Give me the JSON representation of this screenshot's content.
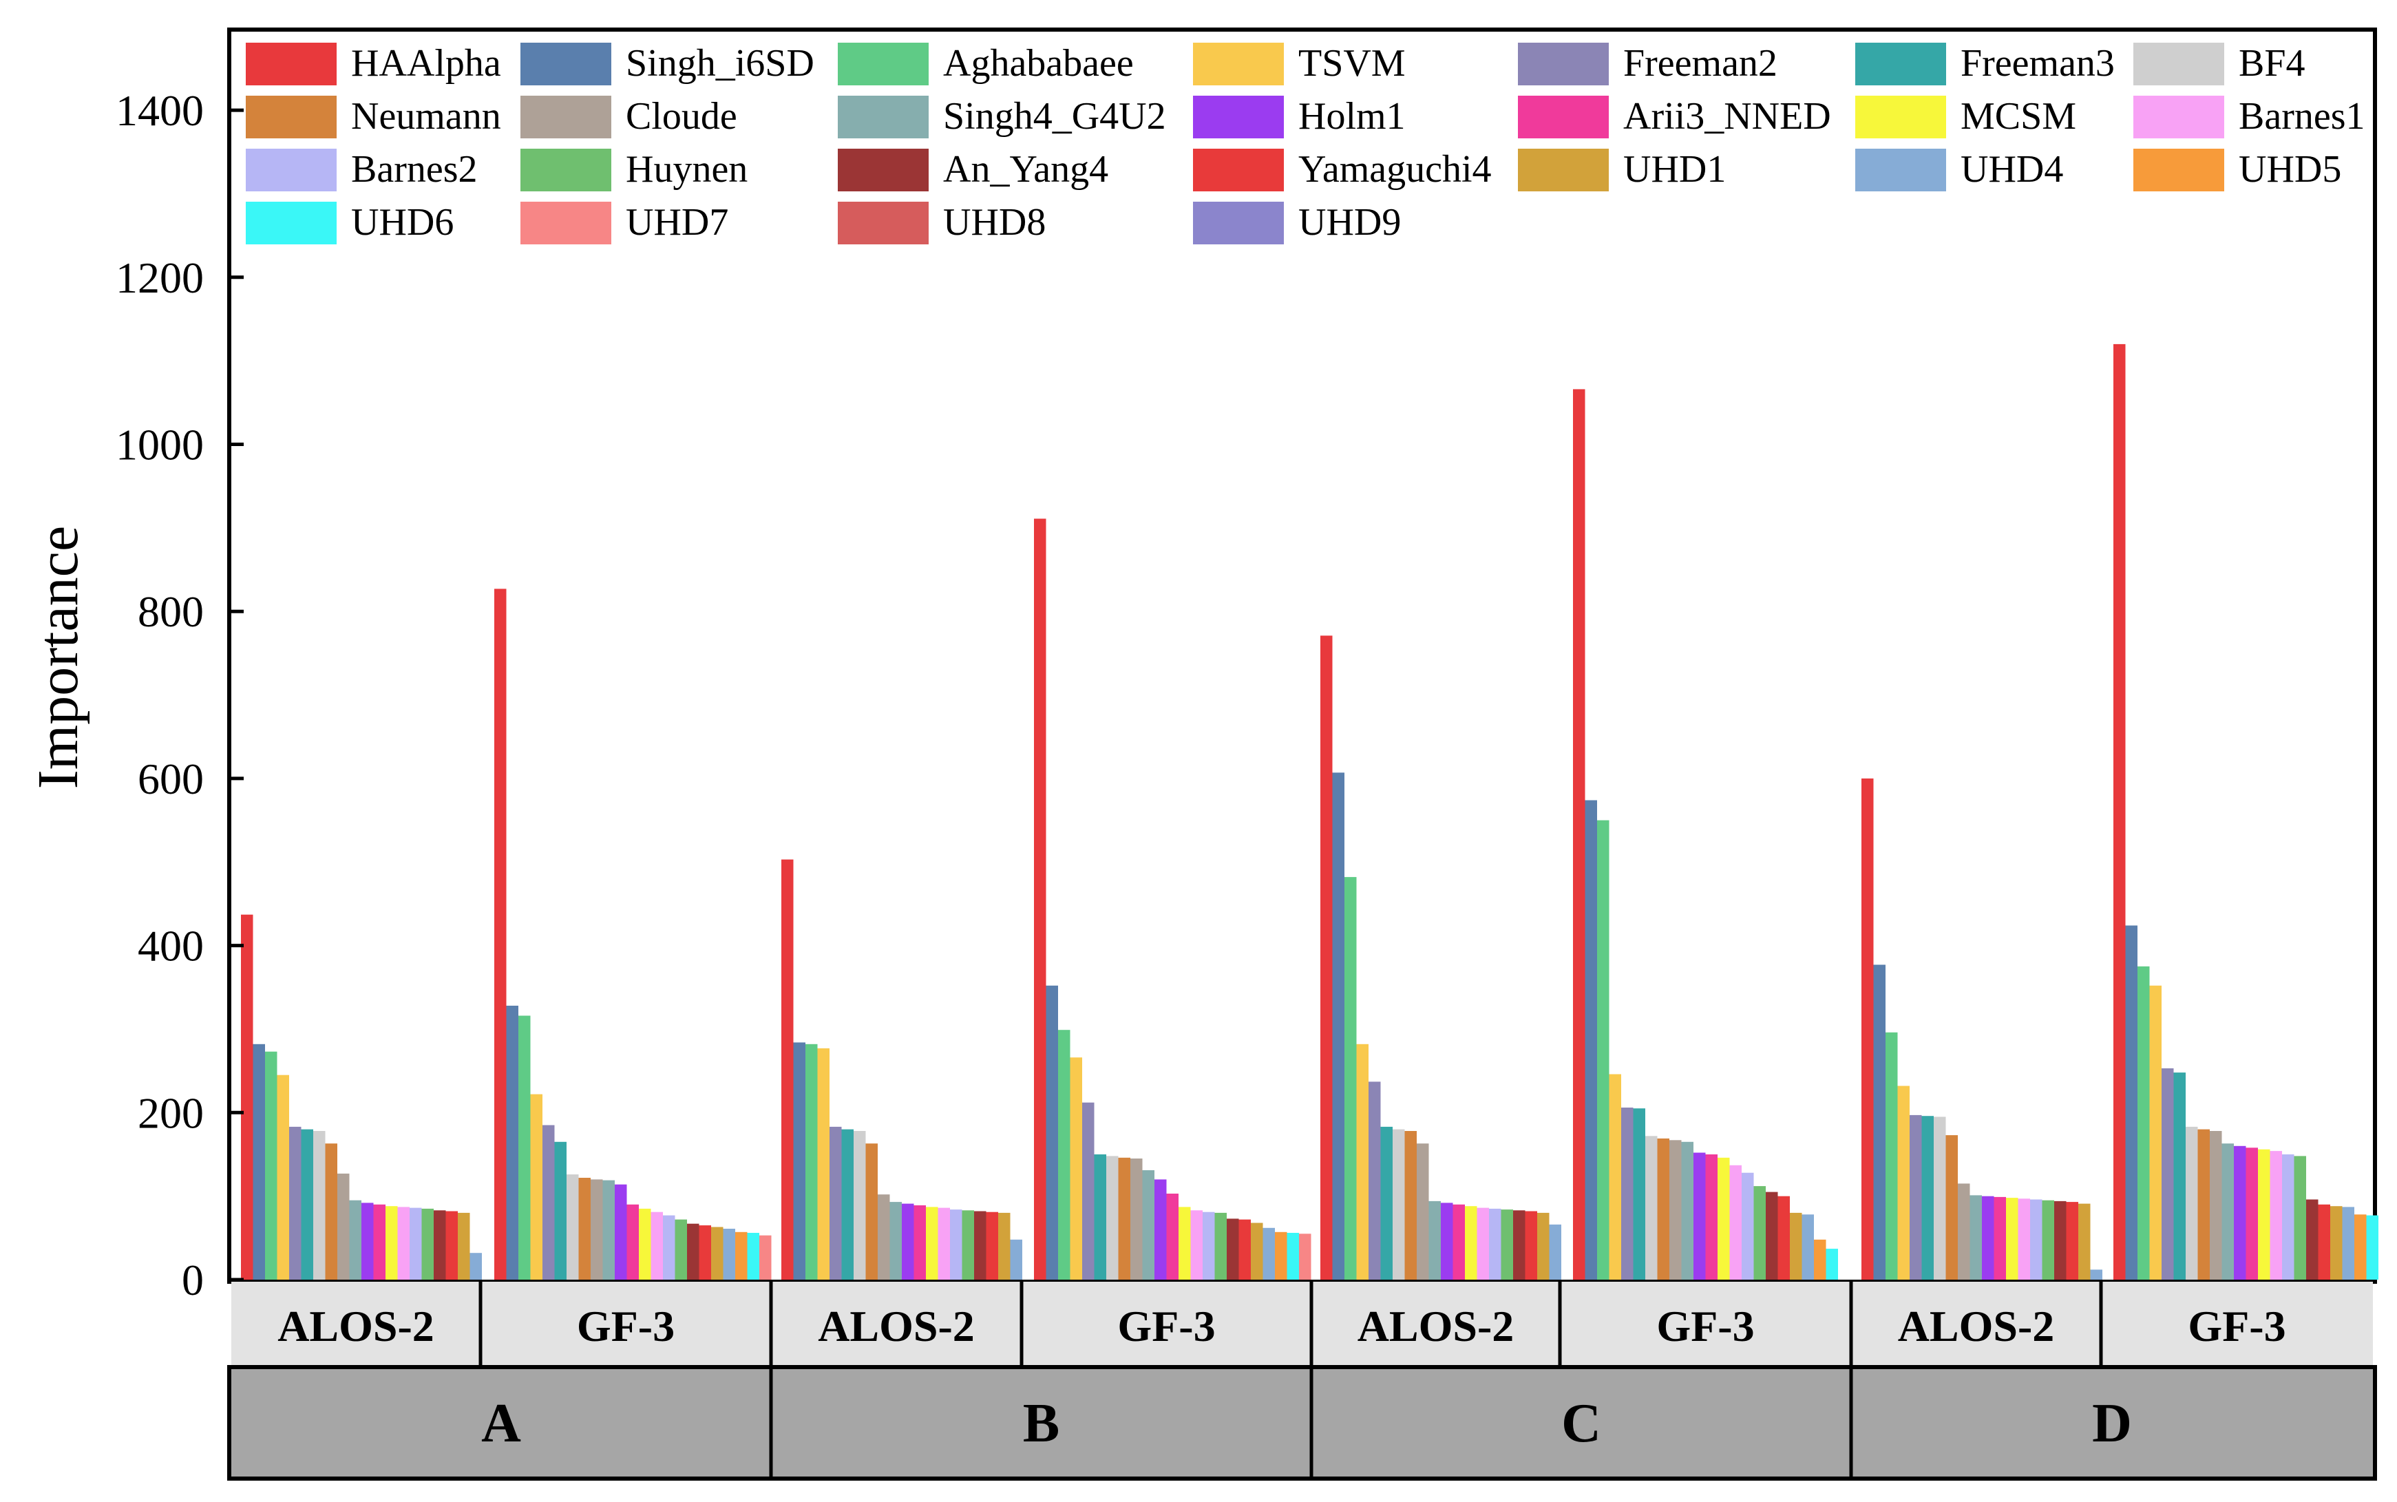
{
  "chart_data": {
    "type": "bar",
    "title": "",
    "xlabel": "",
    "ylabel": "Importance",
    "ylim": [
      0,
      1500
    ],
    "yticks": [
      "0",
      "200",
      "400",
      "600",
      "800",
      "1000",
      "1200",
      "1400"
    ],
    "grid": false,
    "legend_position": "top",
    "legend": [
      {
        "name": "HAAlpha",
        "color": "#e8393c"
      },
      {
        "name": "Singh_i6SD",
        "color": "#5a7fad"
      },
      {
        "name": "Aghababaee",
        "color": "#5fcb86"
      },
      {
        "name": "TSVM",
        "color": "#f9c94d"
      },
      {
        "name": "Freeman2",
        "color": "#8b85b5"
      },
      {
        "name": "Freeman3",
        "color": "#35a7a7"
      },
      {
        "name": "BF4",
        "color": "#cfcfcf"
      },
      {
        "name": "Neumann",
        "color": "#d4833b"
      },
      {
        "name": "Cloude",
        "color": "#aea197"
      },
      {
        "name": "Singh4_G4U2",
        "color": "#86aeae"
      },
      {
        "name": "Holm1",
        "color": "#9b3cf0"
      },
      {
        "name": "Arii3_NNED",
        "color": "#f03a9b"
      },
      {
        "name": "MCSM",
        "color": "#f7f73a"
      },
      {
        "name": "Barnes1",
        "color": "#f8a2f5"
      },
      {
        "name": "Barnes2",
        "color": "#b6b6f5"
      },
      {
        "name": "Huynen",
        "color": "#6fbf6f"
      },
      {
        "name": "An_Yang4",
        "color": "#9b3535"
      },
      {
        "name": "Yamaguchi4",
        "color": "#e83a3a"
      },
      {
        "name": "UHD1",
        "color": "#d2a23a"
      },
      {
        "name": "UHD4",
        "color": "#86acd6"
      },
      {
        "name": "UHD5",
        "color": "#f79b3a"
      },
      {
        "name": "UHD6",
        "color": "#3af7f7"
      },
      {
        "name": "UHD7",
        "color": "#f78686"
      },
      {
        "name": "UHD8",
        "color": "#d65c5c"
      },
      {
        "name": "UHD9",
        "color": "#8b85cc"
      }
    ],
    "groups": [
      {
        "name": "A",
        "subgroups": [
          {
            "name": "ALOS-2",
            "values": [
              437,
              282,
              273,
              245,
              183,
              180,
              178,
              163,
              127,
              95,
              92,
              90,
              88,
              87,
              86,
              85,
              83,
              82,
              80,
              32
            ]
          },
          {
            "name": "GF-3",
            "values": [
              827,
              328,
              316,
              222,
              185,
              165,
              126,
              122,
              120,
              119,
              114,
              90,
              85,
              81,
              77,
              72,
              67,
              65,
              63,
              61,
              57,
              56,
              53
            ]
          }
        ]
      },
      {
        "name": "B",
        "subgroups": [
          {
            "name": "ALOS-2",
            "values": [
              503,
              284,
              282,
              277,
              183,
              180,
              178,
              163,
              102,
              93,
              91,
              89,
              87,
              86,
              84,
              83,
              82,
              81,
              80,
              48
            ]
          },
          {
            "name": "GF-3",
            "values": [
              911,
              352,
              299,
              266,
              212,
              150,
              148,
              146,
              145,
              131,
              120,
              103,
              87,
              83,
              81,
              80,
              73,
              72,
              68,
              62,
              57,
              56,
              55
            ]
          }
        ]
      },
      {
        "name": "C",
        "subgroups": [
          {
            "name": "ALOS-2",
            "values": [
              771,
              607,
              482,
              282,
              237,
              183,
              180,
              178,
              163,
              94,
              92,
              90,
              88,
              86,
              85,
              84,
              83,
              82,
              80,
              66
            ]
          },
          {
            "name": "GF-3",
            "values": [
              1066,
              574,
              550,
              246,
              206,
              205,
              172,
              169,
              167,
              165,
              152,
              150,
              146,
              137,
              128,
              112,
              105,
              100,
              80,
              78,
              48,
              37
            ]
          }
        ]
      },
      {
        "name": "D",
        "subgroups": [
          {
            "name": "ALOS-2",
            "values": [
              600,
              377,
              296,
              232,
              197,
              196,
              195,
              173,
              115,
              101,
              100,
              99,
              98,
              97,
              96,
              95,
              94,
              93,
              91,
              12
            ]
          },
          {
            "name": "GF-3",
            "values": [
              1120,
              424,
              375,
              352,
              253,
              248,
              183,
              180,
              178,
              163,
              160,
              158,
              156,
              154,
              150,
              148,
              96,
              90,
              88,
              87,
              78,
              77
            ]
          }
        ]
      }
    ]
  }
}
